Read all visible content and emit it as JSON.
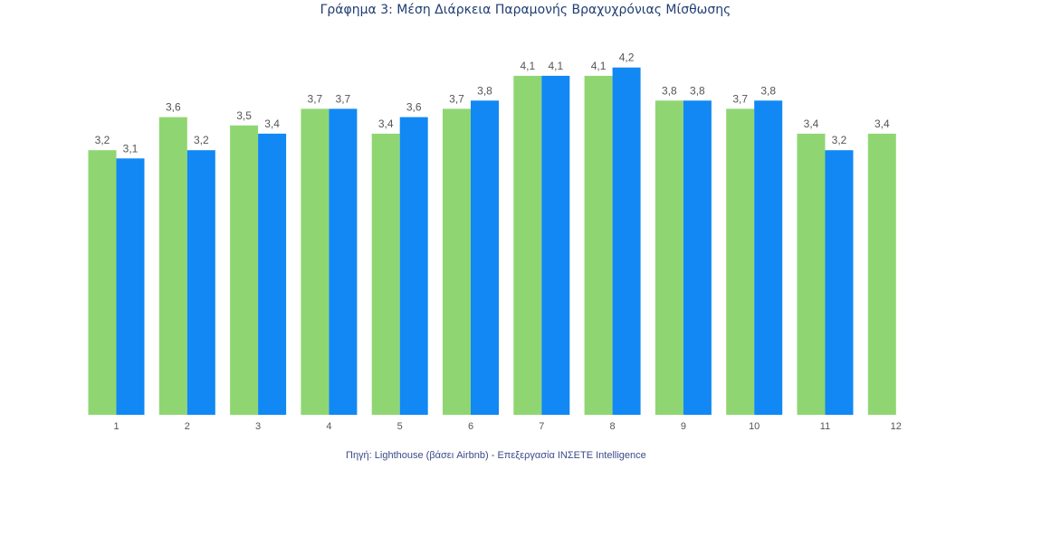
{
  "chart_data": {
    "type": "bar",
    "title": "Γράφημα 3: Μέση Διάρκεια Παραμονής Βραχυχρόνιας Μίσθωσης",
    "source": "Πηγή: Lighthouse (βάσει Airbnb) - Επεξεργασία INΣΕΤΕ Intelligence",
    "categories": [
      "1",
      "2",
      "3",
      "4",
      "5",
      "6",
      "7",
      "8",
      "9",
      "10",
      "11",
      "12"
    ],
    "series": [
      {
        "values": [
          3.2,
          3.6,
          3.5,
          3.7,
          3.4,
          3.7,
          4.1,
          4.1,
          3.8,
          3.7,
          3.4,
          3.4
        ],
        "labels": [
          "3,2",
          "3,6",
          "3,5",
          "3,7",
          "3,4",
          "3,7",
          "4,1",
          "4,1",
          "3,8",
          "3,7",
          "3,4",
          "3,4"
        ],
        "color": "#8fd672"
      },
      {
        "values": [
          3.1,
          3.2,
          3.4,
          3.7,
          3.6,
          3.8,
          4.1,
          4.2,
          3.8,
          3.8,
          3.2,
          null
        ],
        "labels": [
          "3,1",
          "3,2",
          "3,4",
          "3,7",
          "3,6",
          "3,8",
          "4,1",
          "4,2",
          "3,8",
          "3,8",
          "3,2",
          ""
        ],
        "color": "#1188f4"
      }
    ],
    "ylim": [
      0,
      4.2
    ],
    "grid": false,
    "legend": "none"
  }
}
